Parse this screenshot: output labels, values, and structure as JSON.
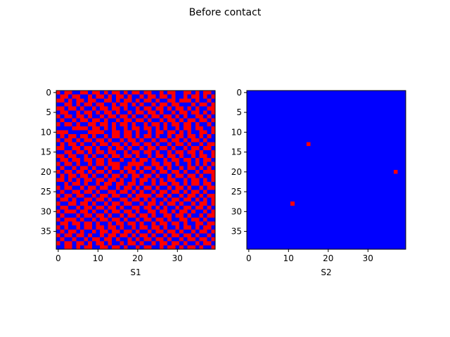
{
  "figure": {
    "title": "Before contact"
  },
  "colors": {
    "state_0": "#0000ff",
    "state_1": "#ff0000",
    "axis": "#000000"
  },
  "chart_data": [
    {
      "type": "heatmap",
      "xlabel": "S1",
      "grid_size": 40,
      "xticks": [
        0,
        10,
        20,
        30
      ],
      "yticks": [
        0,
        5,
        10,
        15,
        20,
        25,
        30,
        35
      ],
      "xlim": [
        -0.5,
        39.5
      ],
      "ylim": [
        39.5,
        -0.5
      ],
      "grid": false,
      "value_encoding": "1 = red, 0 = blue",
      "rows": [
        "1011001101101011010110110010110011010110",
        "0110110010110101101001011011010010110101",
        "1101011011001101011010110100110111010010",
        "0011010110110010110101001011011000101101",
        "1101101001011011010010110110101101010011",
        "0110010110101101001011011010010110110101",
        "1011011010010110110100101101101010011010",
        "0100101101101001011011010010110101101101",
        "1011010011011010110100101101011011010010",
        "0000111101101010010110110101001011011001",
        "1110000011110011011010010110110101001101",
        "0101101101001011011010110100101101101010",
        "1011010110110100101101001011011010110100",
        "0101101001011011010110110100101101001011",
        "1100110110100101101001011011010010110110",
        "0011011010110110010110110100101101101001",
        "1101100101001011011010010110110100101101",
        "0110110110110100100101101001011011010110",
        "1011010010110111001111001101101001010101",
        "0100101101001011011010110110100101101010",
        "1011011010110100101101001011011010010111",
        "0101101101001011010110110100101101101001",
        "1101010110110110100101101010110010110101",
        "0010110100101101101101001011011010110110",
        "1011001011011001011010110100101101001011",
        "0100110110100110110101001011011010110100",
        "1011011001011011001011110110100101101011",
        "0110100110110100110110101001011011010101",
        "1001101101001011011001011010110100101101",
        "0110010110110110100110110101001011011010",
        "1011101101001011011010011011010110100101",
        "0100010110110100101101101001101101001011",
        "1011101001011011010010110110100110110100",
        "0110110110100101101101001011011010011011",
        "1010010110110110100101101101001011010110",
        "0101101001011011011010010110110100101101",
        "1011011010010110110101101001011011010010",
        "0100100101101101001010110110100101101101",
        "1011011010110100101101001011011010010110",
        "0011010110011011010010110010110101101001"
      ]
    },
    {
      "type": "heatmap",
      "xlabel": "S2",
      "grid_size": 40,
      "xticks": [
        0,
        10,
        20,
        30
      ],
      "yticks": [
        0,
        5,
        10,
        15,
        20,
        25,
        30,
        35
      ],
      "xlim": [
        -0.5,
        39.5
      ],
      "ylim": [
        39.5,
        -0.5
      ],
      "grid": false,
      "value_encoding": "background 0 (blue); listed cells = 1 (red)",
      "red_cells": [
        {
          "x": 15,
          "y": 13
        },
        {
          "x": 37,
          "y": 20
        },
        {
          "x": 11,
          "y": 28
        }
      ]
    }
  ]
}
